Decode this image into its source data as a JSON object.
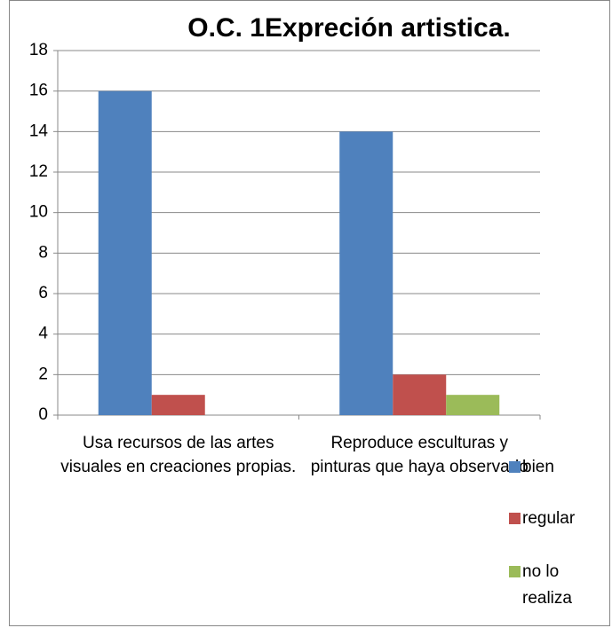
{
  "chart_data": {
    "type": "bar",
    "title": "O.C. 1Expreción artistica.",
    "categories": [
      "Usa recursos de las artes visuales en creaciones propias.",
      "Reproduce esculturas y pinturas que haya observado"
    ],
    "series": [
      {
        "name": "bien",
        "color": "#4f81bd",
        "values": [
          16,
          14
        ]
      },
      {
        "name": "regular",
        "color": "#c0504d",
        "values": [
          1,
          2
        ]
      },
      {
        "name": "no lo realiza",
        "color": "#9bbb59",
        "values": [
          0,
          1
        ]
      }
    ],
    "ylim": [
      0,
      18
    ],
    "yticks": [
      0,
      2,
      4,
      6,
      8,
      10,
      12,
      14,
      16,
      18
    ],
    "grid": true,
    "legend": "right"
  }
}
